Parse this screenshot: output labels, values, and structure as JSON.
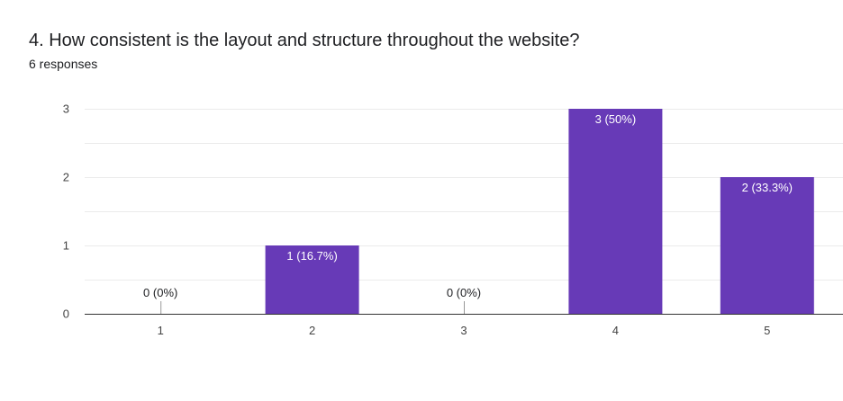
{
  "question": {
    "title": "4. How consistent is the layout and structure throughout the website?",
    "responses": "6 responses"
  },
  "colors": {
    "bar": "#673ab7",
    "label_inside": "#ffffff",
    "label_outside": "#202124",
    "gridline": "#ebebeb",
    "baseline": "#333333"
  },
  "chart_data": {
    "type": "bar",
    "categories": [
      "1",
      "2",
      "3",
      "4",
      "5"
    ],
    "values": [
      0,
      1,
      0,
      3,
      2
    ],
    "data_labels": [
      "0 (0%)",
      "1 (16.7%)",
      "0 (0%)",
      "3 (50%)",
      "2 (33.3%)"
    ],
    "y_ticks": [
      "0",
      "1",
      "2",
      "3"
    ],
    "ylim": [
      0,
      3
    ],
    "grid": true,
    "legend": "none",
    "title": "",
    "xlabel": "",
    "ylabel": ""
  }
}
